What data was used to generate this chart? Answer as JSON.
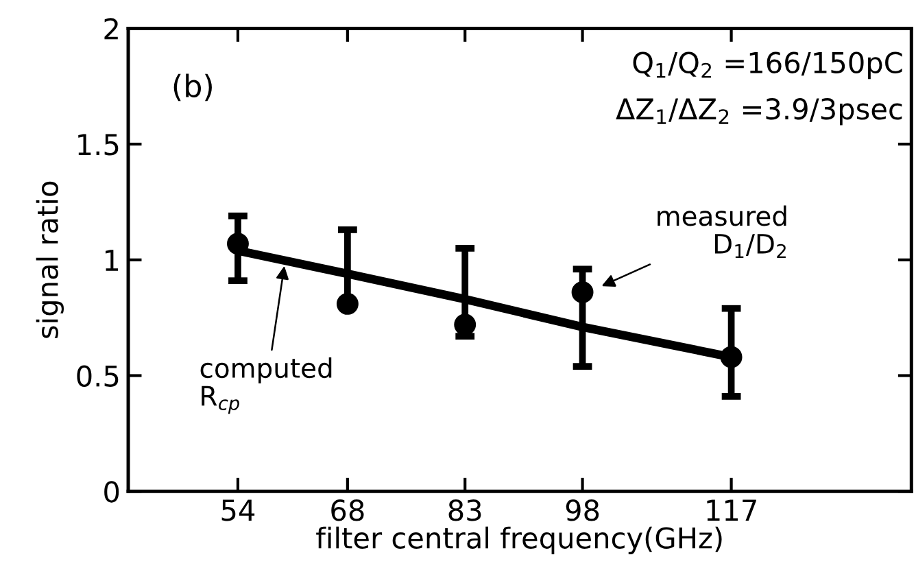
{
  "chart_data": {
    "type": "scatter",
    "xlabel": "filter central frequency(GHz)",
    "ylabel": "signal ratio",
    "x": [
      54,
      68,
      83,
      98,
      117
    ],
    "series": [
      {
        "color": "#000000",
        "marker": "circle",
        "values": [
          1.07,
          0.81,
          0.72,
          0.86,
          0.58
        ],
        "errors": [
          [
            0.91,
            1.19
          ],
          [
            0.81,
            1.13
          ],
          [
            0.67,
            1.05
          ],
          [
            0.54,
            0.96
          ],
          [
            0.41,
            0.79
          ]
        ]
      },
      {
        "type": "line",
        "color": "#000000",
        "marker": "none",
        "line_style": "solid",
        "values": [
          1.04,
          0.94,
          0.83,
          0.71,
          0.58
        ]
      }
    ],
    "xlim": [
      40,
      140
    ],
    "xticks": [
      54,
      68,
      83,
      98,
      117
    ],
    "ylim": [
      0,
      2
    ],
    "yticks": [
      0,
      0.5,
      1,
      1.5,
      2
    ],
    "grid": false,
    "legend": false,
    "annotations": [
      "(b)",
      "Q$_{1}$/Q$_{2}$ =166/150pC",
      "ΔZ$_{1}$/ΔZ$_{2}$ =3.9/3psec",
      {
        "text": "computed\nR$_{cp}$",
        "x": 60,
        "y": 0.99
      },
      {
        "text": "measured\nD$_{1}$/D$_{2}$",
        "x": 100,
        "y": 0.88
      }
    ]
  }
}
